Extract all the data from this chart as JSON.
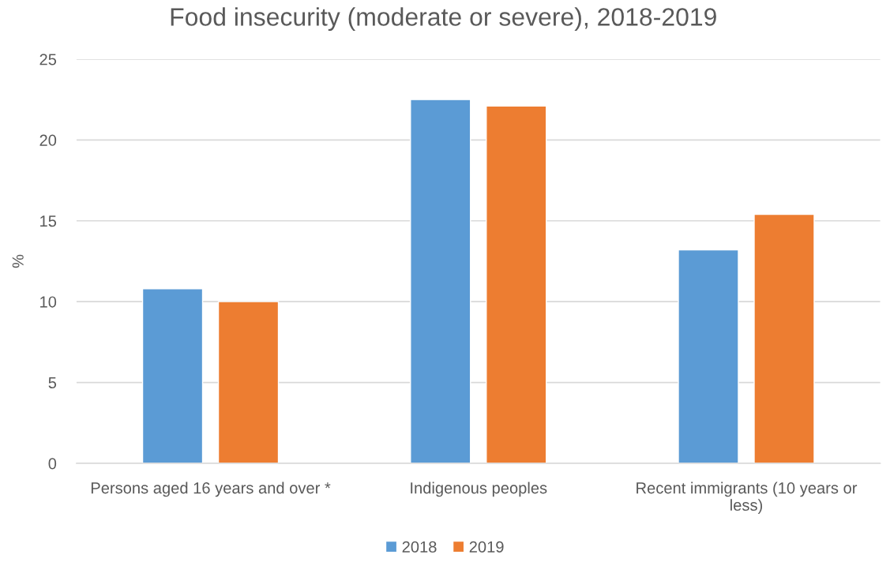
{
  "chart_data": {
    "type": "bar",
    "title": "Food insecurity (moderate or severe), 2018-2019",
    "ylabel": "%",
    "categories": [
      "Persons aged 16 years and over *",
      "Indigenous peoples",
      "Recent immigrants (10 years or\nless)"
    ],
    "series": [
      {
        "name": "2018",
        "color": "#5b9bd5",
        "values": [
          10.8,
          22.5,
          13.2
        ]
      },
      {
        "name": "2019",
        "color": "#ed7d31",
        "values": [
          10.0,
          22.1,
          15.4
        ]
      }
    ],
    "ylim": [
      0,
      25
    ],
    "yticks": [
      0,
      5,
      10,
      15,
      20,
      25
    ],
    "grid": "y",
    "legend": "bottom"
  }
}
